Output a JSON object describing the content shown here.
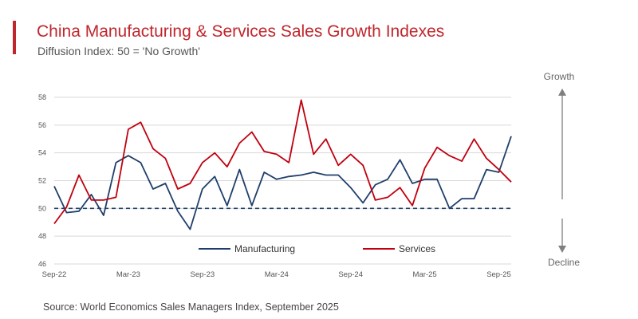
{
  "header": {
    "title": "China Manufacturing & Services Sales Growth Indexes",
    "subtitle": "Diffusion Index: 50 = 'No Growth'"
  },
  "footer": {
    "source": "Source: World Economics Sales Managers Index, September 2025"
  },
  "colors": {
    "accent": "#c0272d",
    "manufacturing": "#1f3f6b",
    "services": "#c0000e",
    "grid": "#d9d9d9",
    "axis_text": "#555555",
    "arrow": "#7f7f7f"
  },
  "chart_data": {
    "type": "line",
    "title": "China Manufacturing & Services Sales Growth Indexes",
    "subtitle": "Diffusion Index: 50 = 'No Growth'",
    "xlabel": "",
    "ylabel": "",
    "ylim": [
      46,
      58
    ],
    "yticks": [
      46,
      48,
      50,
      52,
      54,
      56,
      58
    ],
    "x_tick_labels": [
      "Sep-22",
      "Mar-23",
      "Sep-23",
      "Mar-24",
      "Sep-24",
      "Mar-25",
      "Sep-25"
    ],
    "x_tick_index": [
      0,
      6,
      12,
      18,
      24,
      30,
      36
    ],
    "reference_line": {
      "value": 50,
      "style": "dashed"
    },
    "grid": true,
    "legend_position": "bottom-center",
    "series": [
      {
        "name": "Manufacturing",
        "values": [
          51.6,
          49.7,
          49.8,
          51.0,
          49.5,
          53.3,
          53.8,
          53.3,
          51.4,
          51.8,
          49.8,
          48.5,
          51.4,
          52.3,
          50.2,
          52.8,
          50.2,
          52.6,
          52.1,
          52.3,
          52.4,
          52.6,
          52.4,
          52.4,
          51.5,
          50.4,
          51.7,
          52.1,
          53.5,
          51.8,
          52.1,
          52.1,
          50.0,
          50.7,
          50.7,
          52.8,
          52.6,
          55.2
        ]
      },
      {
        "name": "Services",
        "values": [
          48.9,
          50.1,
          52.4,
          50.6,
          50.6,
          50.8,
          55.7,
          56.2,
          54.3,
          53.6,
          51.4,
          51.8,
          53.3,
          54.0,
          53.0,
          54.7,
          55.5,
          54.1,
          53.9,
          53.3,
          57.8,
          53.9,
          55.0,
          53.1,
          53.9,
          53.1,
          50.6,
          50.8,
          51.5,
          50.2,
          52.9,
          54.4,
          53.8,
          53.4,
          55.0,
          53.6,
          52.8,
          51.9
        ]
      }
    ],
    "annotations": {
      "growth": "Growth",
      "decline": "Decline"
    }
  }
}
